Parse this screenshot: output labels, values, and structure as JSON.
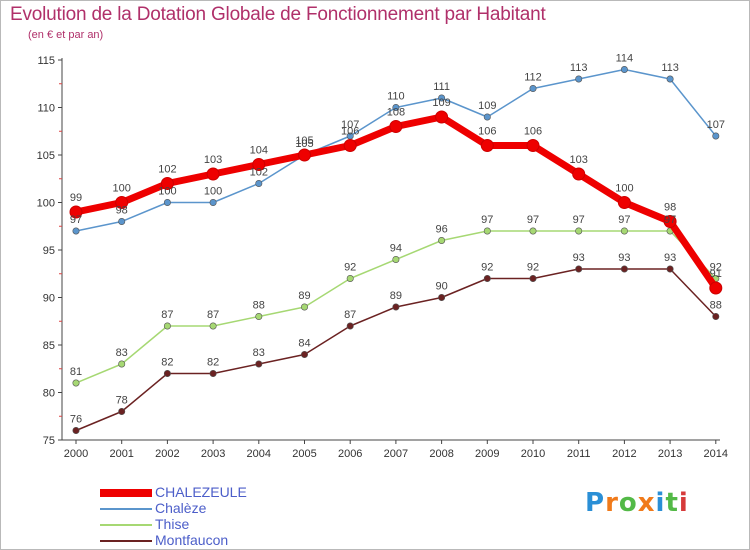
{
  "chart_data": {
    "type": "line",
    "title": "Evolution de la Dotation Globale de Fonctionnement par Habitant",
    "subtitle": "(en € et par an)",
    "xlabel": "",
    "ylabel": "",
    "ylim": [
      75,
      115
    ],
    "yticks": [
      75,
      80,
      85,
      90,
      95,
      100,
      105,
      110,
      115
    ],
    "x": [
      "2000",
      "2001",
      "2002",
      "2003",
      "2004",
      "2005",
      "2006",
      "2007",
      "2008",
      "2009",
      "2010",
      "2011",
      "2012",
      "2013",
      "2014"
    ],
    "series": [
      {
        "name": "Chalèze",
        "color": "#5b95cc",
        "values": [
          97,
          98,
          100,
          100,
          102,
          105,
          107,
          110,
          111,
          109,
          112,
          113,
          114,
          113,
          107
        ]
      },
      {
        "name": "Thise",
        "color": "#a6d873",
        "values": [
          81,
          83,
          87,
          87,
          88,
          89,
          92,
          94,
          96,
          97,
          97,
          97,
          97,
          97,
          92
        ]
      },
      {
        "name": "Montfaucon",
        "color": "#6b2222",
        "values": [
          76,
          78,
          82,
          82,
          83,
          84,
          87,
          89,
          90,
          92,
          92,
          93,
          93,
          93,
          88
        ]
      },
      {
        "name": "CHALEZEULE",
        "color": "#ee0000",
        "values": [
          99,
          100,
          102,
          103,
          104,
          105,
          106,
          108,
          109,
          106,
          106,
          103,
          100,
          98,
          91
        ]
      }
    ],
    "value_labels": {
      "CHALEZEULE": [
        "99",
        "100",
        "102",
        "103",
        "104",
        "105",
        "106",
        "108",
        "109",
        "106",
        "106",
        "103",
        "100",
        "98",
        "91"
      ],
      "Chalèze": [
        "97",
        "98",
        "100",
        "100",
        "102",
        "105",
        "107",
        "110",
        "111",
        "109",
        "112",
        "113",
        "114",
        "113",
        "107"
      ],
      "Thise": [
        "81",
        "83",
        "87",
        "87",
        "88",
        "89",
        "92",
        "94",
        "96",
        "97",
        "97",
        "97",
        "97",
        "97",
        "92"
      ],
      "Montfaucon": [
        "76",
        "78",
        "82",
        "82",
        "83",
        "84",
        "87",
        "89",
        "90",
        "92",
        "92",
        "93",
        "93",
        "93",
        "88"
      ]
    },
    "legend_position": "bottom-left",
    "legend": [
      {
        "name": "CHALEZEULE",
        "color": "#ee0000",
        "style": "thick"
      },
      {
        "name": "Chalèze",
        "color": "#5b95cc",
        "style": "thin"
      },
      {
        "name": "Thise",
        "color": "#a6d873",
        "style": "thin"
      },
      {
        "name": "Montfaucon",
        "color": "#6b2222",
        "style": "thin"
      }
    ],
    "grid": false
  },
  "logo": {
    "letters": [
      "P",
      "r",
      "o",
      "x",
      "i",
      "t",
      "i"
    ],
    "colors": [
      "#2a8fd6",
      "#f07a1a",
      "#53b947",
      "#f07a1a",
      "#2a8fd6",
      "#53b947",
      "#d63a3a"
    ]
  },
  "colors": {
    "title": "#b0306a",
    "axis_text": "#333333",
    "legend_text": "#4c5ec9"
  }
}
